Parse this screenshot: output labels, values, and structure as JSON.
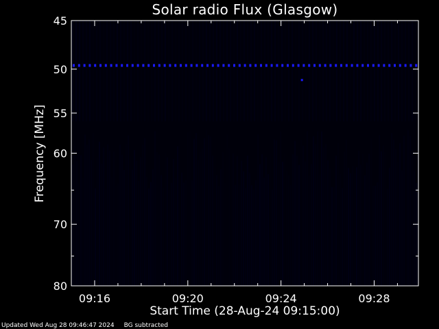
{
  "chart_data": {
    "type": "heatmap",
    "title": "Solar radio Flux (Glasgow)",
    "xlabel": "Start Time (28-Aug-24 09:15:00)",
    "ylabel": "Frequency [MHz]",
    "x_ticks": [
      "09:16",
      "09:20",
      "09:24",
      "09:28"
    ],
    "x_tick_minutes": [
      1,
      5,
      9,
      13
    ],
    "x_range_minutes": [
      0,
      14.9
    ],
    "y_ticks": [
      45,
      50,
      55,
      60,
      70,
      80
    ],
    "y_range": [
      45,
      80
    ],
    "y_scale": "log",
    "colormap": [
      "#000000",
      "#000020",
      "#000060",
      "#0000ff"
    ],
    "features": [
      {
        "type": "horizontal_band",
        "frequency_mhz": 49.6,
        "intensity": "high",
        "color": "#1a1aff"
      },
      {
        "type": "point",
        "frequency_mhz": 51.2,
        "time_minutes": 9.9,
        "color": "#1a1aff"
      }
    ],
    "background_level": "low"
  },
  "footer": {
    "updated": "Updated Wed Aug 28 09:46:47 2024",
    "note": "BG subtracted"
  }
}
